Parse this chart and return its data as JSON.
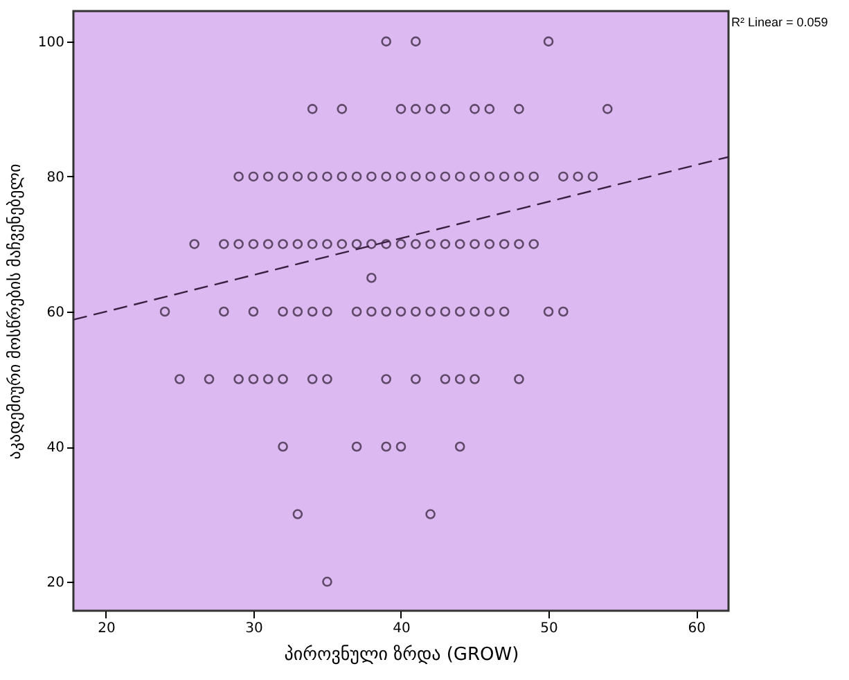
{
  "chart_data": {
    "type": "scatter",
    "xlabel": "პიროვნული ზრდა (GROW)",
    "ylabel": "აკადემიური მოსწრების მაჩვენებელი",
    "xlim": [
      17.8,
      62.2
    ],
    "ylim": [
      15.7,
      104.5
    ],
    "xticks": [
      20,
      30,
      40,
      50,
      60
    ],
    "yticks": [
      20,
      40,
      60,
      80,
      100
    ],
    "grid": false,
    "annotations": [
      "R² Linear = 0.059"
    ],
    "series": [
      {
        "color": "#2a1a30",
        "marker": "circle",
        "x": [
          39,
          41,
          50,
          34,
          36,
          40,
          41,
          42,
          43,
          45,
          46,
          48,
          54,
          29,
          30,
          31,
          32,
          33,
          34,
          35,
          36,
          37,
          38,
          39,
          40,
          41,
          42,
          43,
          44,
          45,
          46,
          47,
          48,
          49,
          51,
          52,
          53,
          26,
          28,
          29,
          30,
          31,
          32,
          33,
          34,
          35,
          36,
          37,
          38,
          39,
          40,
          41,
          42,
          43,
          44,
          45,
          46,
          47,
          48,
          49,
          38,
          24,
          28,
          30,
          32,
          33,
          34,
          35,
          37,
          38,
          39,
          40,
          41,
          42,
          43,
          44,
          45,
          46,
          47,
          50,
          51,
          25,
          27,
          29,
          30,
          31,
          32,
          34,
          35,
          39,
          41,
          43,
          44,
          45,
          48,
          32,
          37,
          39,
          40,
          44,
          33,
          42,
          35
        ],
        "values": [
          100,
          100,
          100,
          90,
          90,
          90,
          90,
          90,
          90,
          90,
          90,
          90,
          90,
          80,
          80,
          80,
          80,
          80,
          80,
          80,
          80,
          80,
          80,
          80,
          80,
          80,
          80,
          80,
          80,
          80,
          80,
          80,
          80,
          80,
          80,
          80,
          80,
          70,
          70,
          70,
          70,
          70,
          70,
          70,
          70,
          70,
          70,
          70,
          70,
          70,
          70,
          70,
          70,
          70,
          70,
          70,
          70,
          70,
          70,
          70,
          65,
          60,
          60,
          60,
          60,
          60,
          60,
          60,
          60,
          60,
          60,
          60,
          60,
          60,
          60,
          60,
          60,
          60,
          60,
          60,
          60,
          50,
          50,
          50,
          50,
          50,
          50,
          50,
          50,
          50,
          50,
          50,
          50,
          50,
          50,
          40,
          40,
          40,
          40,
          40,
          30,
          30,
          20
        ]
      },
      {
        "type": "line",
        "line_style": "dashed",
        "marker": "none",
        "color": "#3a2040",
        "x": [
          17.8,
          62.2
        ],
        "values": [
          58.8,
          82.9
        ]
      }
    ]
  }
}
